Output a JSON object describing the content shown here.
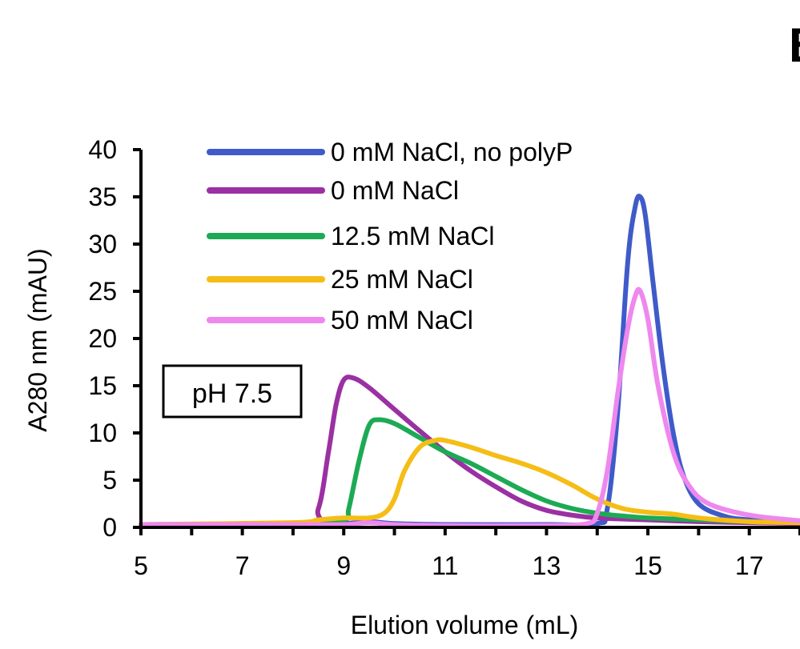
{
  "panel_letter": "B",
  "chart_data": {
    "type": "line",
    "title": "",
    "xlabel": "Elution volume (mL)",
    "ylabel": "A280 nm (mAU)",
    "xlim": [
      5,
      18
    ],
    "ylim": [
      0,
      40
    ],
    "xticks": [
      5,
      7,
      9,
      11,
      13,
      15,
      17
    ],
    "yticks": [
      0,
      5,
      10,
      15,
      20,
      25,
      30,
      35,
      40
    ],
    "grid": false,
    "legend_position": "top",
    "annotation": "pH 7.5",
    "series": [
      {
        "name": "0 mM NaCl, no polyP",
        "color": "#3F5BC9",
        "points": [
          [
            5,
            0.3
          ],
          [
            8,
            0.3
          ],
          [
            9,
            0.4
          ],
          [
            9.5,
            0.6
          ],
          [
            10,
            0.4
          ],
          [
            11,
            0.3
          ],
          [
            13,
            0.3
          ],
          [
            14,
            0.4
          ],
          [
            14.2,
            2
          ],
          [
            14.4,
            12
          ],
          [
            14.6,
            28
          ],
          [
            14.75,
            34
          ],
          [
            14.85,
            35
          ],
          [
            14.95,
            33
          ],
          [
            15.1,
            26
          ],
          [
            15.3,
            17
          ],
          [
            15.5,
            10
          ],
          [
            15.7,
            5.5
          ],
          [
            16,
            2.5
          ],
          [
            16.5,
            1.2
          ],
          [
            17,
            0.8
          ],
          [
            18,
            0.6
          ]
        ]
      },
      {
        "name": "0 mM NaCl",
        "color": "#9B30A3",
        "points": [
          [
            5,
            0.3
          ],
          [
            8.2,
            0.5
          ],
          [
            8.5,
            2
          ],
          [
            8.7,
            8
          ],
          [
            8.85,
            13
          ],
          [
            9,
            15.6
          ],
          [
            9.2,
            15.8
          ],
          [
            9.5,
            14.8
          ],
          [
            10,
            12.5
          ],
          [
            10.5,
            10.2
          ],
          [
            11,
            8
          ],
          [
            11.5,
            6
          ],
          [
            12,
            4.3
          ],
          [
            12.5,
            2.8
          ],
          [
            13,
            1.8
          ],
          [
            13.5,
            1.3
          ],
          [
            14,
            1
          ],
          [
            15,
            0.8
          ],
          [
            16,
            0.6
          ],
          [
            17,
            0.5
          ],
          [
            18,
            0.4
          ]
        ]
      },
      {
        "name": "12.5 mM NaCl",
        "color": "#1DAA55",
        "points": [
          [
            5,
            0.3
          ],
          [
            8,
            0.4
          ],
          [
            9,
            0.8
          ],
          [
            9.1,
            2
          ],
          [
            9.3,
            7
          ],
          [
            9.5,
            10.8
          ],
          [
            9.7,
            11.4
          ],
          [
            10,
            11
          ],
          [
            10.5,
            9.5
          ],
          [
            11,
            8
          ],
          [
            11.5,
            6.8
          ],
          [
            12,
            5.4
          ],
          [
            12.5,
            4
          ],
          [
            13,
            2.8
          ],
          [
            13.5,
            2
          ],
          [
            14,
            1.5
          ],
          [
            14.5,
            1.2
          ],
          [
            15,
            1
          ],
          [
            16,
            0.8
          ],
          [
            17,
            0.6
          ],
          [
            18,
            0.5
          ]
        ]
      },
      {
        "name": "25 mM NaCl",
        "color": "#F5BD16",
        "points": [
          [
            5,
            0.3
          ],
          [
            8,
            0.5
          ],
          [
            8.5,
            0.8
          ],
          [
            9,
            1
          ],
          [
            9.5,
            1
          ],
          [
            9.8,
            1.5
          ],
          [
            10,
            3
          ],
          [
            10.2,
            6
          ],
          [
            10.5,
            8.5
          ],
          [
            10.8,
            9.2
          ],
          [
            11,
            9.2
          ],
          [
            11.5,
            8.5
          ],
          [
            12,
            7.6
          ],
          [
            12.5,
            6.8
          ],
          [
            13,
            5.8
          ],
          [
            13.5,
            4.5
          ],
          [
            14,
            3
          ],
          [
            14.5,
            2
          ],
          [
            15,
            1.6
          ],
          [
            15.5,
            1.4
          ],
          [
            16,
            1
          ],
          [
            17,
            0.6
          ],
          [
            18,
            0.5
          ]
        ]
      },
      {
        "name": "50 mM NaCl",
        "color": "#EE88EE",
        "points": [
          [
            5,
            0.3
          ],
          [
            8,
            0.3
          ],
          [
            9,
            0.3
          ],
          [
            9.5,
            0.5
          ],
          [
            10,
            0.3
          ],
          [
            11,
            0.2
          ],
          [
            13,
            0.2
          ],
          [
            13.8,
            0.4
          ],
          [
            14,
            1.5
          ],
          [
            14.2,
            6
          ],
          [
            14.4,
            14
          ],
          [
            14.6,
            21
          ],
          [
            14.75,
            24.5
          ],
          [
            14.85,
            25
          ],
          [
            15,
            22
          ],
          [
            15.2,
            15
          ],
          [
            15.5,
            8
          ],
          [
            15.8,
            4.5
          ],
          [
            16.2,
            2.5
          ],
          [
            17,
            1.3
          ],
          [
            18,
            0.7
          ]
        ]
      }
    ]
  }
}
